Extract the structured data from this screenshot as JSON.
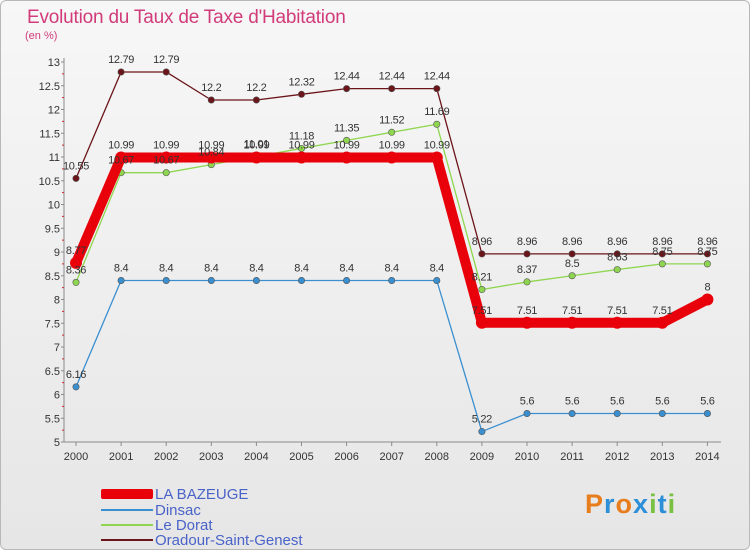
{
  "header": {
    "title": "Evolution du Taux de Taxe d'Habitation",
    "unit": "(en %)"
  },
  "chart_data": {
    "type": "line",
    "title": "Evolution du Taux de Taxe d'Habitation",
    "ylabel": "(en %)",
    "xlabel": "",
    "ylim": [
      5,
      13
    ],
    "yticks": [
      "5",
      "5.5",
      "6",
      "6.5",
      "7",
      "7.5",
      "8",
      "8.5",
      "9",
      "9.5",
      "10",
      "10.5",
      "11",
      "11.5",
      "12",
      "12.5",
      "13"
    ],
    "categories": [
      "2000",
      "2001",
      "2002",
      "2003",
      "2004",
      "2005",
      "2006",
      "2007",
      "2008",
      "2009",
      "2010",
      "2011",
      "2012",
      "2013",
      "2014"
    ],
    "grid": false,
    "legend_placement": "bottom-left",
    "series": [
      {
        "name": "LA BAZEUGE",
        "color": "#e8000b",
        "values": [
          8.77,
          10.99,
          10.99,
          10.99,
          10.99,
          10.99,
          10.99,
          10.99,
          10.99,
          7.51,
          7.51,
          7.51,
          7.51,
          7.51,
          8
        ],
        "labels": [
          "8.77",
          "10.99",
          "10.99",
          "10.99",
          "10.99",
          "10.99",
          "10.99",
          "10.99",
          "10.99",
          "7.51",
          "7.51",
          "7.51",
          "7.51",
          "7.51",
          "8"
        ]
      },
      {
        "name": "Dinsac",
        "color": "#3a8fd0",
        "values": [
          6.16,
          8.4,
          8.4,
          8.4,
          8.4,
          8.4,
          8.4,
          8.4,
          8.4,
          5.22,
          5.6,
          5.6,
          5.6,
          5.6,
          5.6
        ],
        "labels": [
          "6.16",
          "8.4",
          "8.4",
          "8.4",
          "8.4",
          "8.4",
          "8.4",
          "8.4",
          "8.4",
          "5.22",
          "5.6",
          "5.6",
          "5.6",
          "5.6",
          "5.6"
        ]
      },
      {
        "name": "Le Dorat",
        "color": "#8fd650",
        "values": [
          8.36,
          10.67,
          10.67,
          10.84,
          11.01,
          11.18,
          11.35,
          11.52,
          11.69,
          8.21,
          8.37,
          8.5,
          8.63,
          8.75,
          8.75
        ],
        "labels": [
          "8.36",
          "10.67",
          "10.67",
          "10.84",
          "11.01",
          "11.18",
          "11.35",
          "11.52",
          "11.69",
          "8.21",
          "8.37",
          "8.5",
          "8.63",
          "8.75",
          "8.75"
        ]
      },
      {
        "name": "Oradour-Saint-Genest",
        "color": "#6b1419",
        "values": [
          10.55,
          12.79,
          12.79,
          12.2,
          12.2,
          12.32,
          12.44,
          12.44,
          12.44,
          8.96,
          8.96,
          8.96,
          8.96,
          8.96,
          8.96
        ],
        "labels": [
          "10.55",
          "12.79",
          "12.79",
          "12.2",
          "12.2",
          "12.32",
          "12.44",
          "12.44",
          "12.44",
          "8.96",
          "8.96",
          "8.96",
          "8.96",
          "8.96",
          "8.96"
        ]
      }
    ]
  },
  "legend": [
    {
      "label": "LA BAZEUGE",
      "color": "#e8000b"
    },
    {
      "label": "Dinsac",
      "color": "#3a8fd0"
    },
    {
      "label": "Le Dorat",
      "color": "#8fd650"
    },
    {
      "label": "Oradour-Saint-Genest",
      "color": "#6b1419"
    }
  ],
  "brand": {
    "text": "Proxiti",
    "colors": [
      "#e87d1e",
      "#2c8fd8",
      "#e87d1e",
      "#2c8fd8",
      "#7ac142",
      "#2c8fd8",
      "#7ac142"
    ]
  }
}
